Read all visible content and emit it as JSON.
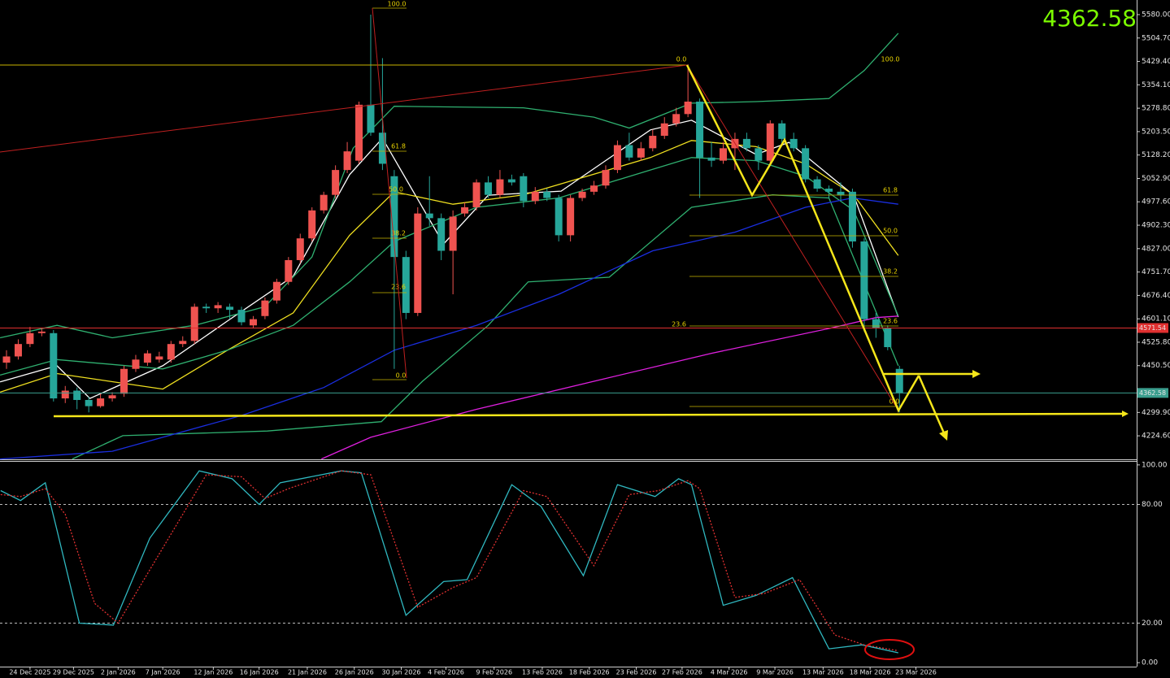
{
  "chart_data": [
    {
      "type": "candlestick",
      "xlim": [
        -0.554,
        96.19
      ],
      "ylim": [
        4149,
        5627
      ],
      "yticks": [
        {
          "value": 5580,
          "label": "5580.00"
        },
        {
          "value": 5504.7,
          "label": "5504.70"
        },
        {
          "value": 5429.4,
          "label": "5429.40"
        },
        {
          "value": 5354.1,
          "label": "5354.10"
        },
        {
          "value": 5278.8,
          "label": "5278.80"
        },
        {
          "value": 5203.5,
          "label": "5203.50"
        },
        {
          "value": 5128.2,
          "label": "5128.20"
        },
        {
          "value": 5052.9,
          "label": "5052.90"
        },
        {
          "value": 4977.6,
          "label": "4977.60"
        },
        {
          "value": 4902.3,
          "label": "4902.30"
        },
        {
          "value": 4827,
          "label": "4827.00"
        },
        {
          "value": 4751.7,
          "label": "4751.70"
        },
        {
          "value": 4676.4,
          "label": "4676.40"
        },
        {
          "value": 4601.1,
          "label": "4601.10"
        },
        {
          "value": 4525.8,
          "label": "4525.80"
        },
        {
          "value": 4450.5,
          "label": "4450.50"
        },
        {
          "value": 4299.9,
          "label": "4299.90"
        },
        {
          "value": 4224.6,
          "label": "4224.60"
        }
      ],
      "up_color": "#ef5350",
      "down_color": "#26a69a",
      "open": [
        4460,
        4480,
        4520,
        4555,
        4555,
        4345,
        4370,
        4340,
        4320,
        4345,
        4360,
        4440,
        4460,
        4470,
        4470,
        4520,
        4530,
        4640,
        4635,
        4640,
        4630,
        4580,
        4610,
        4660,
        4720,
        4790,
        4860,
        4950,
        5000,
        5080,
        5110,
        5290,
        5200,
        5060,
        4800,
        4620,
        4940,
        4925,
        4820,
        4940,
        4960,
        5040,
        5000,
        5050,
        5060,
        4980,
        5010,
        4990,
        4870,
        4990,
        5010,
        5030,
        5080,
        5160,
        5120,
        5150,
        5190,
        5230,
        5260,
        5300,
        5120,
        5110,
        5150,
        5180,
        5150,
        5110,
        5230,
        5180,
        5150,
        5050,
        5020,
        5010,
        5010,
        4850,
        4600,
        4570,
        4440
      ],
      "high": [
        4500,
        4535,
        4575,
        4570,
        4565,
        4385,
        4380,
        4350,
        4360,
        4365,
        4450,
        4485,
        4500,
        4495,
        4530,
        4545,
        4650,
        4650,
        4655,
        4650,
        4640,
        4610,
        4670,
        4730,
        4800,
        4875,
        4960,
        5010,
        5095,
        5170,
        5300,
        5580,
        5440,
        5080,
        4820,
        4960,
        5060,
        4940,
        4950,
        4975,
        5050,
        5060,
        5080,
        5065,
        5070,
        5025,
        5020,
        5000,
        5000,
        5020,
        5045,
        5095,
        5175,
        5200,
        5170,
        5210,
        5250,
        5280,
        5420,
        5310,
        5170,
        5170,
        5200,
        5200,
        5160,
        5240,
        5240,
        5200,
        5160,
        5060,
        5030,
        5040,
        5020,
        4860,
        4620,
        4580,
        4450
      ],
      "low": [
        4440,
        4470,
        4510,
        4545,
        4335,
        4330,
        4310,
        4300,
        4315,
        4335,
        4350,
        4430,
        4450,
        4460,
        4460,
        4510,
        4520,
        4620,
        4620,
        4600,
        4580,
        4570,
        4600,
        4650,
        4710,
        4780,
        4850,
        4940,
        4990,
        5070,
        5100,
        5190,
        5080,
        4440,
        4600,
        4610,
        4900,
        4790,
        4680,
        4930,
        4950,
        4990,
        4990,
        5030,
        4960,
        4970,
        4980,
        4850,
        4850,
        4980,
        5000,
        5020,
        5070,
        5110,
        5110,
        5140,
        5180,
        5220,
        5250,
        4990,
        5090,
        5100,
        5080,
        5140,
        5080,
        5100,
        5160,
        5140,
        5040,
        5010,
        4990,
        4980,
        4830,
        4560,
        4540,
        4500,
        4300
      ],
      "close": [
        4480,
        4520,
        4555,
        4560,
        4345,
        4370,
        4340,
        4320,
        4345,
        4355,
        4440,
        4470,
        4490,
        4480,
        4520,
        4530,
        4640,
        4635,
        4645,
        4630,
        4590,
        4600,
        4660,
        4720,
        4790,
        4860,
        4950,
        5000,
        5080,
        5140,
        5290,
        5200,
        5100,
        4800,
        4620,
        4940,
        4925,
        4820,
        4930,
        4960,
        5040,
        5000,
        5050,
        5040,
        4980,
        5010,
        4990,
        4870,
        4990,
        5010,
        5030,
        5080,
        5160,
        5120,
        5150,
        5190,
        5230,
        5260,
        5300,
        5120,
        5110,
        5150,
        5180,
        5150,
        5110,
        5230,
        5180,
        5150,
        5050,
        5020,
        5010,
        5000,
        4850,
        4600,
        4570,
        4510,
        4362.58
      ],
      "hline": 4571.54,
      "hline_color": "#e03030",
      "last_color": "#3a9e8e",
      "series": [
        {
          "color": "#ffffff",
          "x": [
            -0.55,
            4.3,
            7.1,
            13.3,
            18.8,
            24.4,
            29.2,
            32.0,
            37.2,
            41.0,
            47.2,
            54.8,
            58.3,
            63.8,
            66.6,
            72.1,
            75.9
          ],
          "values": [
            4398,
            4450,
            4345,
            4450,
            4594,
            4738,
            5065,
            5182,
            4842,
            4999,
            5012,
            5209,
            5240,
            5130,
            5169,
            4999,
            4607
          ]
        },
        {
          "color": "#f0e020",
          "x": [
            -0.55,
            4.3,
            13.3,
            18.8,
            24.4,
            29.2,
            33.0,
            38.0,
            44.0,
            54.8,
            58.3,
            63.8,
            68.0,
            72.1,
            75.9
          ],
          "values": [
            4365,
            4425,
            4375,
            4500,
            4620,
            4870,
            5010,
            4970,
            5000,
            5120,
            5175,
            5155,
            5100,
            5000,
            4805
          ]
        },
        {
          "color": "#2fb070",
          "x": [
            -0.55,
            4.3,
            9.0,
            16.0,
            22.0,
            26.0,
            29.5,
            33.0,
            44.0,
            50.0,
            53.0,
            58.3,
            63.8,
            70.0,
            73.0,
            75.9
          ],
          "values": [
            4540,
            4580,
            4540,
            4580,
            4640,
            4800,
            5150,
            5285,
            5280,
            5250,
            5215,
            5295,
            5300,
            5310,
            5400,
            5520
          ]
        },
        {
          "color": "#2fb070",
          "x": [
            -0.55,
            4.3,
            13.3,
            18.8,
            24.4,
            29.2,
            33.0,
            40.0,
            47.0,
            54.8,
            58.3,
            63.8,
            68.0,
            72.1,
            75.9
          ],
          "values": [
            4420,
            4470,
            4440,
            4500,
            4580,
            4720,
            4850,
            4960,
            4990,
            5080,
            5120,
            5110,
            5060,
            4950,
            4610
          ]
        },
        {
          "color": "#2fb070",
          "x": [
            5.6,
            9.9,
            22.2,
            31.9,
            35.4,
            41.0,
            44.4,
            51.3,
            58.3,
            65.2,
            70.0,
            75.9
          ],
          "values": [
            4150,
            4225,
            4240,
            4270,
            4400,
            4580,
            4720,
            4735,
            4960,
            5000,
            4990,
            4450
          ]
        },
        {
          "color": "#1a2ee0",
          "x": [
            -0.55,
            9.0,
            20.0,
            27.0,
            33.0,
            40.0,
            47.0,
            55.0,
            62.0,
            68.0,
            72.0,
            75.9
          ],
          "values": [
            4150,
            4175,
            4290,
            4380,
            4500,
            4580,
            4680,
            4820,
            4880,
            4960,
            4990,
            4970
          ]
        },
        {
          "color": "#e020e0",
          "x": [
            26.8,
            31.0,
            40.0,
            50.0,
            60.0,
            70.0,
            74.0,
            75.9
          ],
          "values": [
            4150,
            4220,
            4310,
            4400,
            4490,
            4570,
            4605,
            4610
          ]
        }
      ],
      "fib_a": [
        "100.0",
        "61.8",
        "50.0",
        "38.2",
        "23.6",
        "0.0"
      ],
      "fib_b": [
        "0.0",
        "100.0",
        "61.8",
        "50.0",
        "38.2",
        "23.6",
        "23.6",
        "0.0"
      ]
    },
    {
      "type": "line",
      "xlim": [
        -0.554,
        96.19
      ],
      "ylim": [
        -2,
        102
      ],
      "yticks": [
        {
          "value": 100,
          "label": "100.00"
        },
        {
          "value": 80,
          "label": "80.00"
        },
        {
          "value": 20,
          "label": "20.00"
        },
        {
          "value": 0,
          "label": "0.00"
        }
      ],
      "levels": [
        80,
        20
      ],
      "xticks": [
        {
          "value": 2.0,
          "label": "24 Dec 2025"
        },
        {
          "value": 5.7,
          "label": "29 Dec 2025"
        },
        {
          "value": 9.5,
          "label": "2 Jan 2026"
        },
        {
          "value": 13.3,
          "label": "7 Jan 2026"
        },
        {
          "value": 17.6,
          "label": "12 Jan 2026"
        },
        {
          "value": 21.5,
          "label": "16 Jan 2026"
        },
        {
          "value": 25.6,
          "label": "21 Jan 2026"
        },
        {
          "value": 29.6,
          "label": "26 Jan 2026"
        },
        {
          "value": 33.6,
          "label": "30 Jan 2026"
        },
        {
          "value": 37.4,
          "label": "4 Feb 2026"
        },
        {
          "value": 41.5,
          "label": "9 Feb 2026"
        },
        {
          "value": 45.6,
          "label": "13 Feb 2026"
        },
        {
          "value": 49.6,
          "label": "18 Feb 2026"
        },
        {
          "value": 53.6,
          "label": "23 Feb 2026"
        },
        {
          "value": 57.5,
          "label": "27 Feb 2026"
        },
        {
          "value": 61.5,
          "label": "4 Mar 2026"
        },
        {
          "value": 65.4,
          "label": "9 Mar 2026"
        },
        {
          "value": 69.5,
          "label": "13 Mar 2026"
        },
        {
          "value": 73.5,
          "label": "18 Mar 2026"
        },
        {
          "value": 77.4,
          "label": "23 Mar 2026"
        }
      ],
      "series": [
        {
          "color": "#30b8c0",
          "x": [
            -0.5,
            1.2,
            3.3,
            4.3,
            6.2,
            9.1,
            12.2,
            16.4,
            19.2,
            21.5,
            23.3,
            28.5,
            30.2,
            34.0,
            37.2,
            39.2,
            43.0,
            45.5,
            49.1,
            52.0,
            55.2,
            57.2,
            58.3,
            61.0,
            63.8,
            66.9,
            70.0,
            72.8,
            75.9
          ],
          "values": [
            87,
            82,
            91,
            67,
            20,
            19,
            63,
            97,
            93,
            80,
            91,
            97,
            96,
            24,
            41,
            42,
            90,
            79,
            44,
            90,
            84,
            93,
            90,
            29,
            34,
            43,
            7,
            9,
            5
          ]
        },
        {
          "color": "#e03030",
          "x": [
            -0.5,
            1.2,
            3.3,
            5.0,
            7.5,
            9.5,
            13.0,
            17.0,
            20.0,
            22.0,
            24.0,
            28.5,
            31.0,
            35.0,
            38.0,
            40.0,
            44.0,
            46.0,
            50.0,
            53.0,
            55.5,
            58.0,
            59.0,
            62.0,
            64.5,
            67.5,
            70.5,
            73.0,
            75.9
          ],
          "values": [
            85,
            84,
            88,
            75,
            30,
            20,
            55,
            95,
            94,
            83,
            88,
            97,
            95,
            28,
            38,
            43,
            87,
            84,
            49,
            85,
            87,
            92,
            88,
            33,
            35,
            42,
            14,
            9,
            6
          ]
        }
      ]
    }
  ]
}
